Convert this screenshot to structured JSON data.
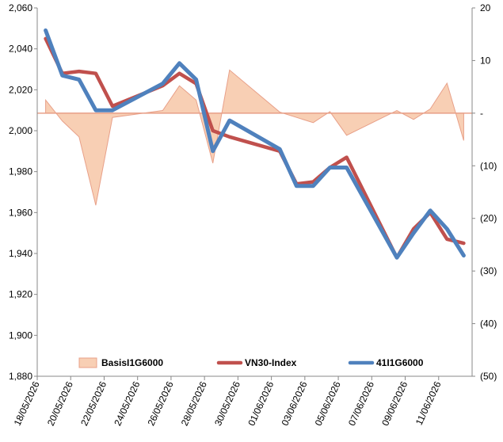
{
  "chart_data": {
    "type": "line",
    "x": [
      "18/05/2026",
      "19/05/2026",
      "20/05/2026",
      "21/05/2026",
      "22/05/2026",
      "25/05/2026",
      "26/05/2026",
      "27/05/2026",
      "28/05/2026",
      "29/05/2026",
      "01/06/2026",
      "02/06/2026",
      "03/06/2026",
      "04/06/2026",
      "05/06/2026",
      "08/06/2026",
      "09/06/2026",
      "10/06/2026",
      "11/06/2026",
      "12/06/2026"
    ],
    "x_tick_labels": [
      "18/05/2026",
      "20/05/2026",
      "22/05/2026",
      "24/05/2026",
      "26/05/2026",
      "28/05/2026",
      "30/05/2026",
      "01/06/2026",
      "03/06/2026",
      "05/06/2026",
      "07/06/2026",
      "09/06/2026",
      "11/06/2026"
    ],
    "left_axis": {
      "ylim": [
        1880,
        2060
      ],
      "ticks": [
        1880,
        1900,
        1920,
        1940,
        1960,
        1980,
        2000,
        2020,
        2040,
        2060
      ],
      "tick_labels": [
        "1,880",
        "1,900",
        "1,920",
        "1,940",
        "1,960",
        "1,980",
        "2,000",
        "2,020",
        "2,040",
        "2,060"
      ]
    },
    "right_axis": {
      "ylim": [
        -50,
        20
      ],
      "ticks": [
        -50,
        -40,
        -30,
        -20,
        -10,
        0,
        10,
        20
      ],
      "tick_labels": [
        "(50)",
        "(40)",
        "(30)",
        "(20)",
        "(10)",
        "-",
        "10",
        "20"
      ]
    },
    "series": [
      {
        "name": "BasisI1G6000",
        "axis": "right",
        "style": "area",
        "color": "#f8cfb4",
        "edge_color": "#e8a089",
        "values": [
          {
            "x": "18/05/2026",
            "y": 2.5
          },
          {
            "x": "19/05/2026",
            "y": -1.5
          },
          {
            "x": "20/05/2026",
            "y": -4.5
          },
          {
            "x": "21/05/2026",
            "y": -17.5
          },
          {
            "x": "22/05/2026",
            "y": -0.8
          },
          {
            "x": "25/05/2026",
            "y": 0.5
          },
          {
            "x": "26/05/2026",
            "y": 5.2
          },
          {
            "x": "27/05/2026",
            "y": 2.5
          },
          {
            "x": "28/05/2026",
            "y": -9.5
          },
          {
            "x": "29/05/2026",
            "y": 8.2
          },
          {
            "x": "01/06/2026",
            "y": 0.2
          },
          {
            "x": "02/06/2026",
            "y": -0.8
          },
          {
            "x": "03/06/2026",
            "y": -1.8
          },
          {
            "x": "04/06/2026",
            "y": 0.3
          },
          {
            "x": "05/06/2026",
            "y": -4.2
          },
          {
            "x": "08/06/2026",
            "y": 0.5
          },
          {
            "x": "09/06/2026",
            "y": -1.2
          },
          {
            "x": "10/06/2026",
            "y": 0.8
          },
          {
            "x": "11/06/2026",
            "y": 5.7
          },
          {
            "x": "12/06/2026",
            "y": -5.2
          }
        ]
      },
      {
        "name": "VN30-Index",
        "axis": "left",
        "style": "line",
        "color": "#c0504d",
        "values": [
          {
            "x": "18/05/2026",
            "y": 2045
          },
          {
            "x": "19/05/2026",
            "y": 2028
          },
          {
            "x": "20/05/2026",
            "y": 2029
          },
          {
            "x": "21/05/2026",
            "y": 2028
          },
          {
            "x": "22/05/2026",
            "y": 2012
          },
          {
            "x": "25/05/2026",
            "y": 2022
          },
          {
            "x": "26/05/2026",
            "y": 2028
          },
          {
            "x": "27/05/2026",
            "y": 2023
          },
          {
            "x": "28/05/2026",
            "y": 2000
          },
          {
            "x": "29/05/2026",
            "y": 1997
          },
          {
            "x": "01/06/2026",
            "y": 1990
          },
          {
            "x": "02/06/2026",
            "y": 1974
          },
          {
            "x": "03/06/2026",
            "y": 1975
          },
          {
            "x": "04/06/2026",
            "y": 1982
          },
          {
            "x": "05/06/2026",
            "y": 1987
          },
          {
            "x": "08/06/2026",
            "y": 1938
          },
          {
            "x": "09/06/2026",
            "y": 1952
          },
          {
            "x": "10/06/2026",
            "y": 1960
          },
          {
            "x": "11/06/2026",
            "y": 1947
          },
          {
            "x": "12/06/2026",
            "y": 1945
          }
        ]
      },
      {
        "name": "41I1G6000",
        "axis": "left",
        "style": "line",
        "color": "#4f81bd",
        "values": [
          {
            "x": "18/05/2026",
            "y": 2049
          },
          {
            "x": "19/05/2026",
            "y": 2027
          },
          {
            "x": "20/05/2026",
            "y": 2025
          },
          {
            "x": "21/05/2026",
            "y": 2010
          },
          {
            "x": "22/05/2026",
            "y": 2010
          },
          {
            "x": "25/05/2026",
            "y": 2023
          },
          {
            "x": "26/05/2026",
            "y": 2033
          },
          {
            "x": "27/05/2026",
            "y": 2025
          },
          {
            "x": "28/05/2026",
            "y": 1990
          },
          {
            "x": "29/05/2026",
            "y": 2005
          },
          {
            "x": "01/06/2026",
            "y": 1991
          },
          {
            "x": "02/06/2026",
            "y": 1973
          },
          {
            "x": "03/06/2026",
            "y": 1973
          },
          {
            "x": "04/06/2026",
            "y": 1982
          },
          {
            "x": "05/06/2026",
            "y": 1982
          },
          {
            "x": "08/06/2026",
            "y": 1938
          },
          {
            "x": "09/06/2026",
            "y": 1950
          },
          {
            "x": "10/06/2026",
            "y": 1961
          },
          {
            "x": "11/06/2026",
            "y": 1952
          },
          {
            "x": "12/06/2026",
            "y": 1939
          }
        ]
      }
    ],
    "legend": {
      "placement": "bottom",
      "entries": [
        "BasisI1G6000",
        "VN30-Index",
        "41I1G6000"
      ]
    },
    "grid": false,
    "zero_line_color": "#e8a089"
  }
}
